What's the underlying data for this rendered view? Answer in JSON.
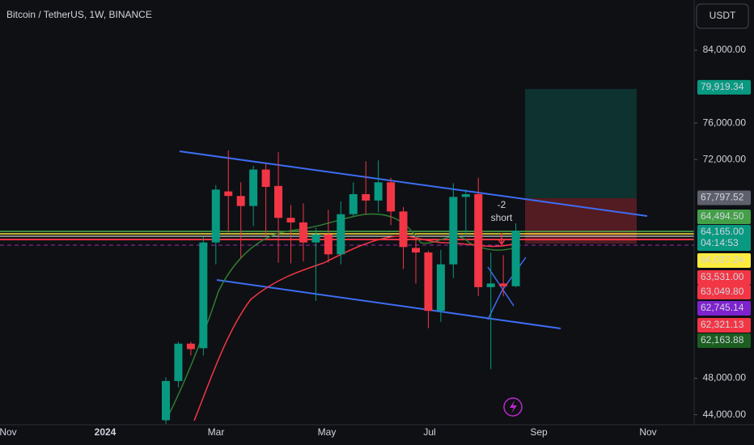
{
  "chart_data": {
    "type": "candlestick",
    "title": "Bitcoin / TetherUS, 1W, BINANCE",
    "currency": "USDT",
    "countdown": "04:14:53",
    "annotation": {
      "count": "-2",
      "text": "short"
    },
    "up_color": "#089981",
    "down_color": "#f23645",
    "ylim": [
      42900,
      89500
    ],
    "yticks": [
      {
        "value": 84000,
        "label": "84,000.00"
      },
      {
        "value": 76000,
        "label": "76,000.00"
      },
      {
        "value": 72000,
        "label": "72,000.00"
      },
      {
        "value": 48000,
        "label": "48,000.00"
      },
      {
        "value": 44000,
        "label": "44,000.00"
      }
    ],
    "xlabels": [
      "Nov",
      "2024",
      "Mar",
      "May",
      "Jul",
      "Sep",
      "Nov"
    ],
    "open": [
      43400,
      47700,
      51800,
      51300,
      62900,
      68500,
      68000,
      66900,
      70900,
      69100,
      65600,
      65100,
      62900,
      63800,
      61600,
      66000,
      68200,
      67500,
      69500,
      66300,
      62300,
      61800,
      55400,
      60500,
      67900,
      68200,
      58000,
      58400,
      58100
    ],
    "high": [
      48100,
      52000,
      52000,
      63500,
      69200,
      73000,
      69500,
      71300,
      71600,
      72800,
      67000,
      67200,
      64500,
      66500,
      67400,
      69500,
      71800,
      71900,
      70000,
      66800,
      63400,
      62000,
      62100,
      69400,
      68700,
      70000,
      61800,
      61500,
      65000
    ],
    "low": [
      43000,
      47000,
      50500,
      50500,
      60500,
      64000,
      61200,
      64700,
      63600,
      60700,
      60600,
      60800,
      56500,
      60700,
      60500,
      65800,
      66000,
      66200,
      64800,
      60000,
      58400,
      53500,
      54200,
      59000,
      63500,
      57000,
      49000,
      57000,
      58000
    ],
    "close": [
      47700,
      51800,
      51200,
      62900,
      68700,
      68000,
      66900,
      70900,
      69000,
      65600,
      65100,
      62900,
      63800,
      61600,
      66000,
      68200,
      67500,
      69500,
      66300,
      62400,
      61800,
      55400,
      60500,
      67900,
      68200,
      58000,
      58400,
      58100,
      64200
    ],
    "price_labels": [
      {
        "value": 79919.34,
        "label": "79,919.34",
        "color": "#089981"
      },
      {
        "value": 67797.52,
        "label": "67,797.52",
        "color": "#5d606b"
      },
      {
        "value": 64494.5,
        "label": "64,494.50",
        "color": "#43a047"
      },
      {
        "value": 64165.0,
        "label": "64,165.00",
        "color": "#089981"
      },
      {
        "value": 64037.24,
        "label": "64,037.24",
        "color": "#ffeb3b"
      },
      {
        "value": 63531.0,
        "label": "63,531.00",
        "color": "#f23645"
      },
      {
        "value": 63049.8,
        "label": "63,049.80",
        "color": "#f23645"
      },
      {
        "value": 62745.14,
        "label": "62,745.14",
        "color": "#7e22ce"
      },
      {
        "value": 62321.13,
        "label": "62,321.13",
        "color": "#f23645"
      },
      {
        "value": 62163.88,
        "label": "62,163.88",
        "color": "#1b5e20"
      }
    ]
  }
}
